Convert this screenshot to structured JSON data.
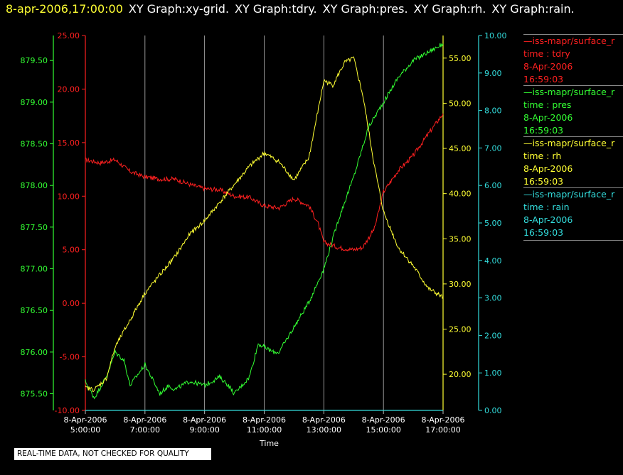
{
  "header": {
    "timestamp": "8-apr-2006,17:00:00",
    "graph_titles": [
      "XY Graph:xy-grid.",
      "XY Graph:tdry.",
      "XY Graph:pres.",
      "XY Graph:rh.",
      "XY Graph:rain."
    ]
  },
  "colors": {
    "background": "#000000",
    "tdry": "#ff2020",
    "pres": "#33ff33",
    "rh": "#ffff33",
    "rain": "#33dddd",
    "grid": "#bbbbbb",
    "text": "#ffffff"
  },
  "legend": [
    {
      "series": "tdry",
      "name": "—iss-mapr/surface_r",
      "var": "time : tdry",
      "date": "8-Apr-2006",
      "time": "16:59:03"
    },
    {
      "series": "pres",
      "name": "—iss-mapr/surface_r",
      "var": "time : pres",
      "date": "8-Apr-2006",
      "time": "16:59:03"
    },
    {
      "series": "rh",
      "name": "—iss-mapr/surface_r",
      "var": "time : rh",
      "date": "8-Apr-2006",
      "time": "16:59:03"
    },
    {
      "series": "rain",
      "name": "—iss-mapr/surface_r",
      "var": "time : rain",
      "date": "8-Apr-2006",
      "time": "16:59:03"
    }
  ],
  "footer": {
    "note": "REAL-TIME DATA, NOT CHECKED FOR QUALITY"
  },
  "chart_data": {
    "type": "line",
    "title": "",
    "xlabel": "Time",
    "x_ticks": [
      {
        "date": "8-Apr-2006",
        "time": "5:00:00"
      },
      {
        "date": "8-Apr-2006",
        "time": "7:00:00"
      },
      {
        "date": "8-Apr-2006",
        "time": "9:00:00"
      },
      {
        "date": "8-Apr-2006",
        "time": "11:00:00"
      },
      {
        "date": "8-Apr-2006",
        "time": "13:00:00"
      },
      {
        "date": "8-Apr-2006",
        "time": "15:00:00"
      },
      {
        "date": "8-Apr-2006",
        "time": "17:00:00"
      }
    ],
    "xlim": [
      "8-Apr-2006 05:00:00",
      "8-Apr-2006 17:00:00"
    ],
    "x_unit": "hour of day",
    "grid": "vertical",
    "axes": {
      "pres": {
        "side": "left-outer",
        "ylim": [
          875.3,
          879.8
        ],
        "ticks": [
          "875.50",
          "876.00",
          "876.50",
          "877.00",
          "877.50",
          "878.00",
          "878.50",
          "879.00",
          "879.50"
        ]
      },
      "tdry": {
        "side": "left-inner",
        "ylim": [
          -10.0,
          25.0
        ],
        "ticks": [
          "-10.00",
          "-5.00",
          "0.00",
          "5.00",
          "10.00",
          "15.00",
          "20.00",
          "25.00"
        ]
      },
      "rh": {
        "side": "right-inner",
        "ylim": [
          16.0,
          57.5
        ],
        "ticks": [
          "20.00",
          "25.00",
          "30.00",
          "35.00",
          "40.00",
          "45.00",
          "50.00",
          "55.00"
        ]
      },
      "rain": {
        "side": "right-outer",
        "ylim": [
          0.0,
          10.0
        ],
        "ticks": [
          "0.00",
          "1.00",
          "2.00",
          "3.00",
          "4.00",
          "5.00",
          "6.00",
          "7.00",
          "8.00",
          "9.00",
          "10.00"
        ]
      }
    },
    "series": [
      {
        "key": "tdry",
        "axis": "tdry",
        "points": [
          [
            5.0,
            13.4
          ],
          [
            5.5,
            13.1
          ],
          [
            6.0,
            13.4
          ],
          [
            6.5,
            12.3
          ],
          [
            7.0,
            11.8
          ],
          [
            7.5,
            11.6
          ],
          [
            8.0,
            11.6
          ],
          [
            8.5,
            11.1
          ],
          [
            9.0,
            10.7
          ],
          [
            9.5,
            10.6
          ],
          [
            10.0,
            10.0
          ],
          [
            10.5,
            9.9
          ],
          [
            11.0,
            9.1
          ],
          [
            11.5,
            8.9
          ],
          [
            12.0,
            9.8
          ],
          [
            12.5,
            9.1
          ],
          [
            12.8,
            7.5
          ],
          [
            13.0,
            5.7
          ],
          [
            13.5,
            5.2
          ],
          [
            14.0,
            5.0
          ],
          [
            14.3,
            5.2
          ],
          [
            14.7,
            7.0
          ],
          [
            15.0,
            10.4
          ],
          [
            15.5,
            12.4
          ],
          [
            16.0,
            13.8
          ],
          [
            16.5,
            15.8
          ],
          [
            17.0,
            17.7
          ]
        ]
      },
      {
        "key": "pres",
        "axis": "pres",
        "points": [
          [
            5.0,
            875.65
          ],
          [
            5.3,
            875.45
          ],
          [
            5.7,
            875.7
          ],
          [
            6.0,
            876.0
          ],
          [
            6.3,
            875.9
          ],
          [
            6.5,
            875.6
          ],
          [
            7.0,
            875.85
          ],
          [
            7.5,
            875.5
          ],
          [
            7.8,
            875.6
          ],
          [
            8.0,
            875.55
          ],
          [
            8.5,
            875.65
          ],
          [
            9.0,
            875.6
          ],
          [
            9.5,
            875.7
          ],
          [
            9.8,
            875.6
          ],
          [
            10.0,
            875.5
          ],
          [
            10.5,
            875.7
          ],
          [
            10.8,
            876.1
          ],
          [
            11.3,
            876.0
          ],
          [
            11.5,
            876.0
          ],
          [
            12.0,
            876.3
          ],
          [
            12.5,
            876.6
          ],
          [
            13.0,
            877.0
          ],
          [
            13.5,
            877.6
          ],
          [
            14.0,
            878.1
          ],
          [
            14.5,
            878.7
          ],
          [
            15.0,
            879.0
          ],
          [
            15.5,
            879.3
          ],
          [
            16.0,
            879.5
          ],
          [
            16.5,
            879.6
          ],
          [
            17.0,
            879.7
          ]
        ]
      },
      {
        "key": "rh",
        "axis": "rh",
        "points": [
          [
            5.0,
            18.5
          ],
          [
            5.3,
            18.3
          ],
          [
            5.7,
            19.5
          ],
          [
            6.0,
            23.0
          ],
          [
            6.5,
            26.0
          ],
          [
            7.0,
            29.0
          ],
          [
            7.5,
            31.0
          ],
          [
            8.0,
            33.0
          ],
          [
            8.5,
            35.5
          ],
          [
            9.0,
            37.0
          ],
          [
            9.5,
            39.0
          ],
          [
            10.0,
            41.0
          ],
          [
            10.5,
            43.0
          ],
          [
            11.0,
            44.5
          ],
          [
            11.5,
            43.5
          ],
          [
            12.0,
            41.5
          ],
          [
            12.5,
            44.0
          ],
          [
            13.0,
            52.5
          ],
          [
            13.3,
            52.0
          ],
          [
            13.7,
            54.5
          ],
          [
            14.0,
            55.0
          ],
          [
            14.3,
            51.0
          ],
          [
            14.7,
            43.0
          ],
          [
            15.0,
            38.0
          ],
          [
            15.5,
            34.0
          ],
          [
            16.0,
            32.0
          ],
          [
            16.5,
            29.5
          ],
          [
            17.0,
            28.5
          ]
        ]
      },
      {
        "key": "rain",
        "axis": "rain",
        "points": [
          [
            5.0,
            0.0
          ],
          [
            17.0,
            0.0
          ]
        ]
      }
    ]
  }
}
